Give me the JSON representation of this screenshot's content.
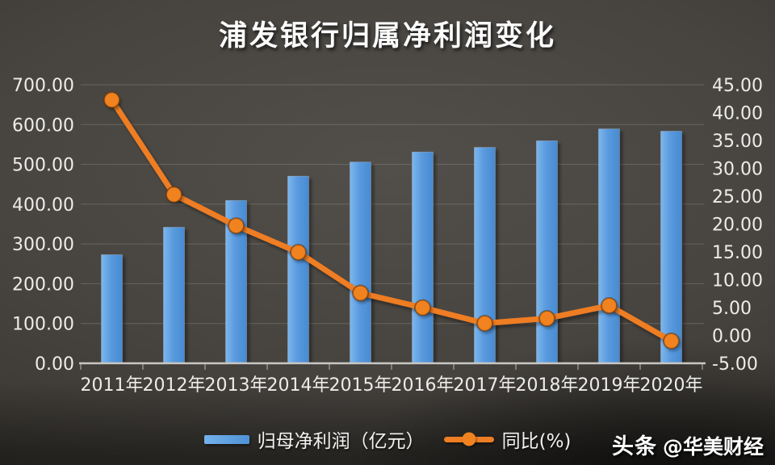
{
  "title": "浦发银行归属净利润变化",
  "watermark": {
    "brand": "头条",
    "handle": "@华美财经"
  },
  "colors": {
    "background_center": "#524f4b",
    "background_edge": "#292622",
    "bar_light": "#7cb7ee",
    "bar_main": "#5a9ade",
    "bar_dark": "#478bd1",
    "bar_outline": "rgba(255,255,255,0.25)",
    "line": "#ee7d23",
    "marker_fill": "#f0831f",
    "marker_rim": "rgba(96,48,8,0.55)",
    "axis_text": "#edecea",
    "gridline": "#8a857c",
    "axis_line": "#c9c7c3"
  },
  "chart_data": {
    "type": "bar",
    "subtype": "bar-line-combo",
    "title": "浦发银行归属净利润变化",
    "categories": [
      "2011年",
      "2012年",
      "2013年",
      "2014年",
      "2015年",
      "2016年",
      "2017年",
      "2018年",
      "2019年",
      "2020年"
    ],
    "series": [
      {
        "name": "归母净利润（亿元）",
        "type": "bar",
        "axis": "left",
        "values": [
          272.86,
          341.86,
          409.22,
          470.26,
          505.77,
          530.99,
          542.58,
          559.14,
          589.11,
          583.25
        ]
      },
      {
        "name": "同比(%)",
        "type": "line",
        "axis": "right",
        "values": [
          42.28,
          25.29,
          19.7,
          14.92,
          7.61,
          4.99,
          2.18,
          3.05,
          5.36,
          -0.99
        ]
      }
    ],
    "left_axis": {
      "min": 0,
      "max": 700,
      "step": 100,
      "tick_format": "0.00"
    },
    "right_axis": {
      "min": -5,
      "max": 45,
      "step": 5,
      "tick_format": "0.00"
    },
    "grid": true,
    "legend_position": "bottom"
  }
}
